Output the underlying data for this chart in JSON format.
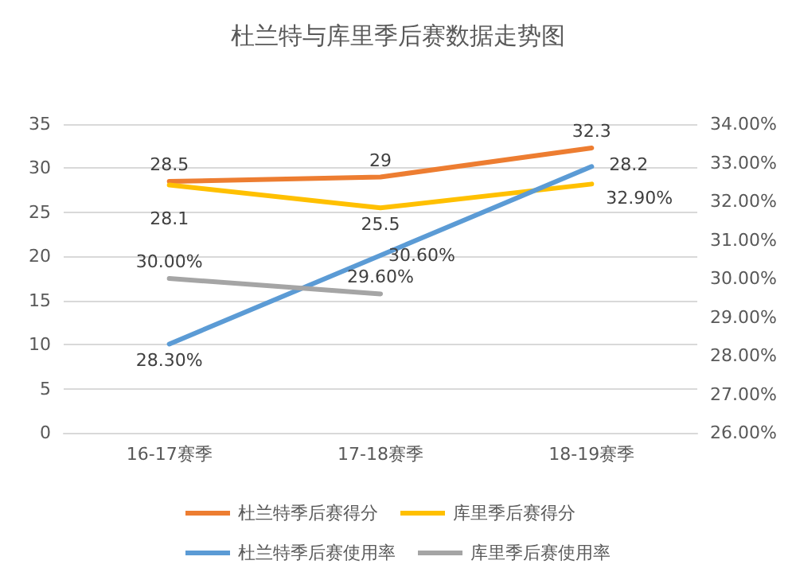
{
  "chart_data": {
    "type": "line",
    "title": "杜兰特与库里季后赛数据走势图",
    "categories": [
      "16-17赛季",
      "17-18赛季",
      "18-19赛季"
    ],
    "series": [
      {
        "name": "杜兰特季后赛得分",
        "color": "#ed7d31",
        "values": [
          28.5,
          29,
          32.3
        ],
        "value_labels": [
          "28.5",
          "29",
          "32.3"
        ]
      },
      {
        "name": "库里季后赛得分",
        "color": "#ffc000",
        "values": [
          28.1,
          25.5,
          28.2
        ],
        "value_labels": [
          "28.1",
          "25.5",
          "28.2"
        ]
      },
      {
        "name": "杜兰特季后赛使用率",
        "color": "#5b9bd5",
        "axis": "y2",
        "values": [
          28.3,
          30.6,
          32.9
        ],
        "value_labels": [
          "28.30%",
          "30.60%",
          "32.90%"
        ]
      },
      {
        "name": "库里季后赛使用率",
        "color": "#a5a5a5",
        "axis": "y2",
        "values": [
          30.0,
          29.6,
          null
        ],
        "value_labels": [
          "30.00%",
          "29.60%",
          null
        ]
      }
    ],
    "ylim": [
      0,
      35
    ],
    "yticks": [
      0,
      5,
      10,
      15,
      20,
      25,
      30,
      35
    ],
    "y2lim": [
      26,
      34
    ],
    "y2ticks": [
      {
        "value": 26,
        "label": "26.00%"
      },
      {
        "value": 27,
        "label": "27.00%"
      },
      {
        "value": 28,
        "label": "28.00%"
      },
      {
        "value": 29,
        "label": "29.00%"
      },
      {
        "value": 30,
        "label": "30.00%"
      },
      {
        "value": 31,
        "label": "31.00%"
      },
      {
        "value": 32,
        "label": "32.00%"
      },
      {
        "value": 33,
        "label": "33.00%"
      },
      {
        "value": 34,
        "label": "34.00%"
      }
    ],
    "grid": "y",
    "legend": "bottom",
    "marker": "none",
    "line_style": "solid"
  }
}
